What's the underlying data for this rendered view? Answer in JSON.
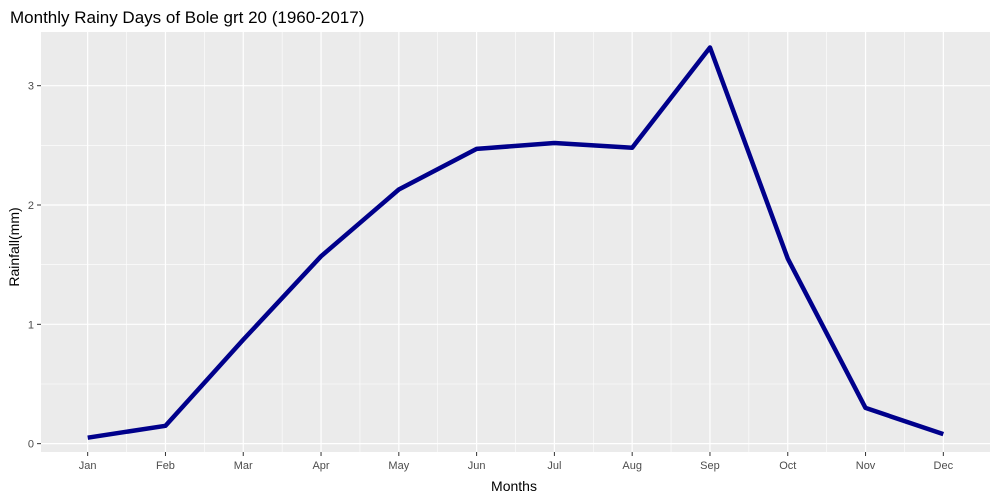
{
  "chart_data": {
    "type": "line",
    "title": "Monthly Rainy Days of Bole grt 20 (1960-2017)",
    "xlabel": "Months",
    "ylabel": "Rainfall(mm)",
    "categories": [
      "Jan",
      "Feb",
      "Mar",
      "Apr",
      "May",
      "Jun",
      "Jul",
      "Aug",
      "Sep",
      "Oct",
      "Nov",
      "Dec"
    ],
    "values": [
      0.05,
      0.15,
      0.87,
      1.57,
      2.13,
      2.47,
      2.52,
      2.48,
      3.32,
      1.55,
      0.3,
      0.08
    ],
    "yticks": [
      0,
      1,
      2,
      3
    ],
    "ytick_labels": [
      "0",
      "1",
      "2",
      "3"
    ],
    "ylim": [
      -0.07,
      3.45
    ],
    "grid": true,
    "colors": {
      "line": "#00008B",
      "panel": "#EBEBEB",
      "grid_major": "#FFFFFF"
    }
  }
}
